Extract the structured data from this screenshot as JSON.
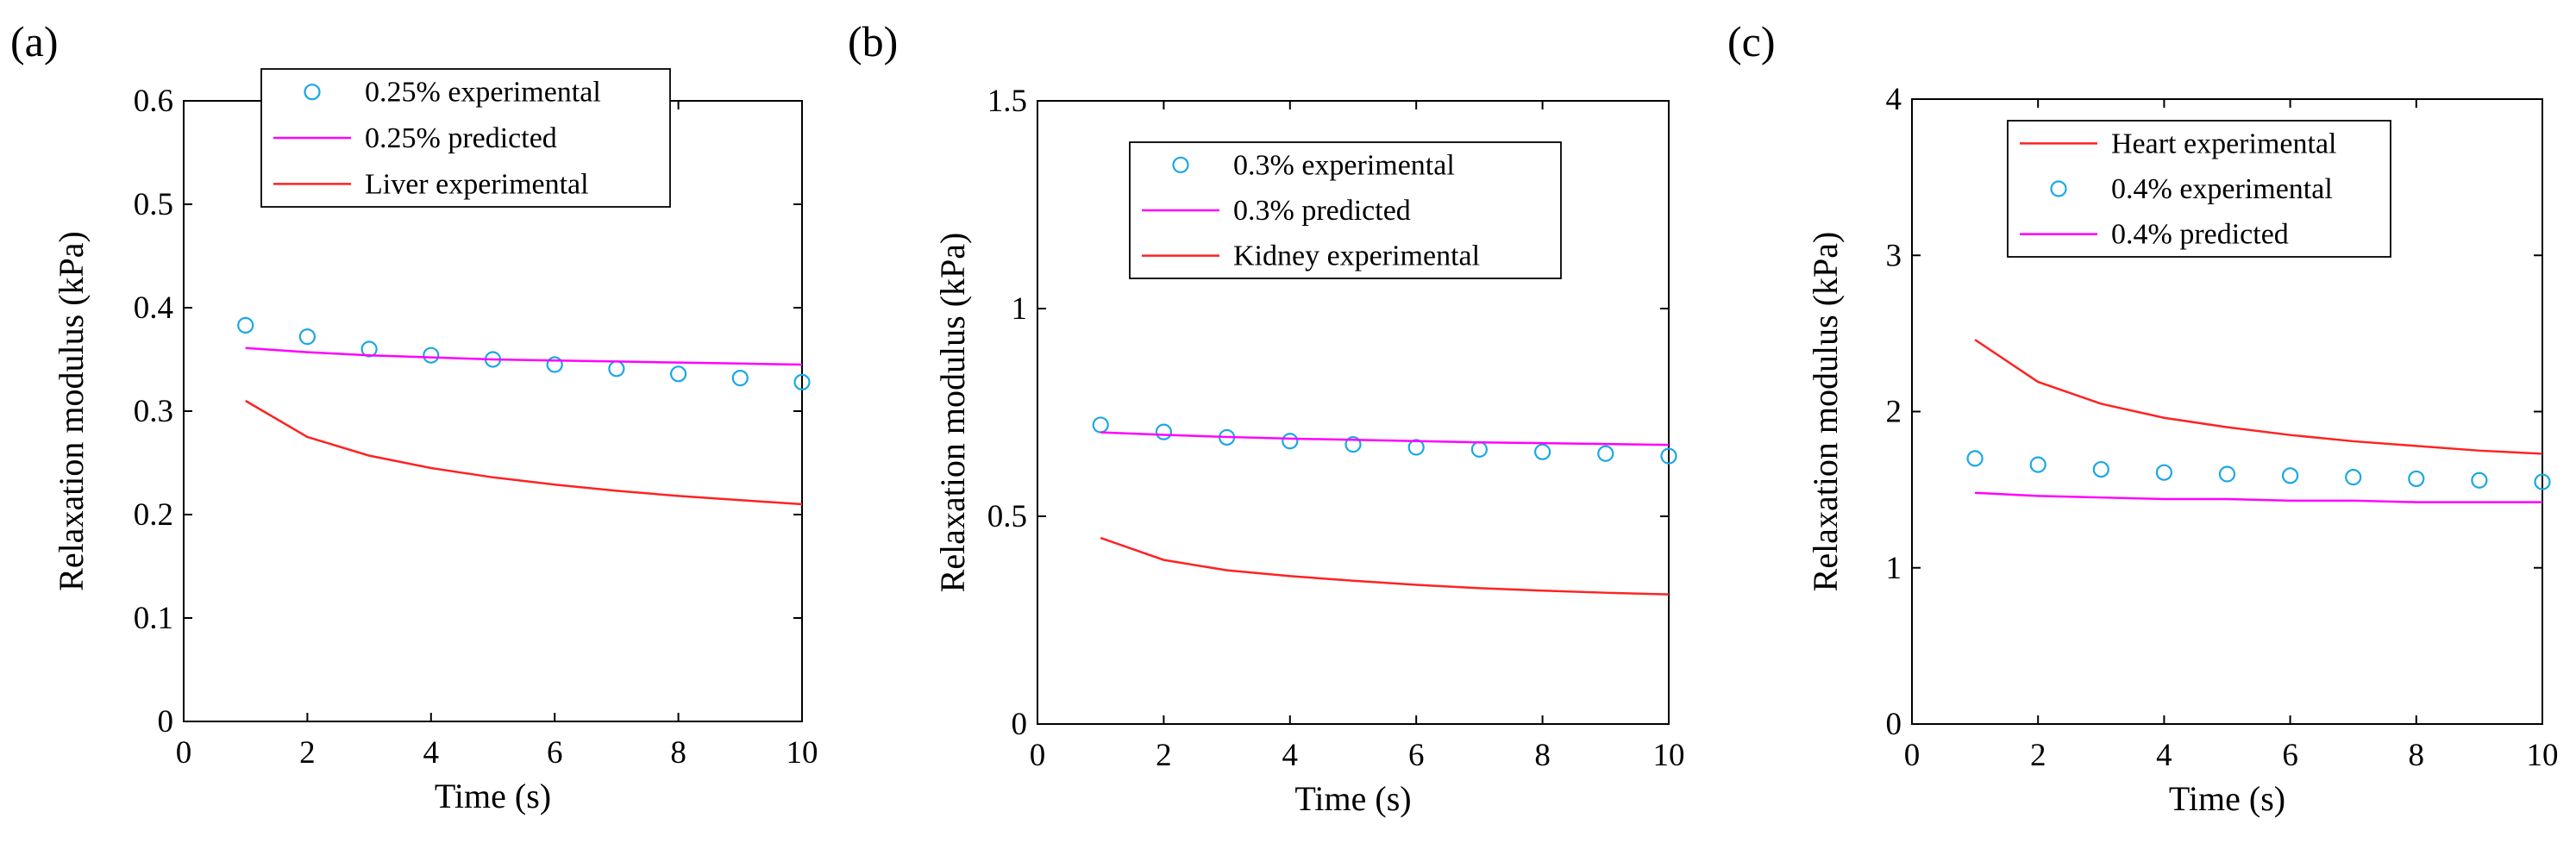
{
  "colors": {
    "experimental_marker": "#1aa7e6",
    "predicted": "#ff00ff",
    "tissue": "#ff2222",
    "axis": "#000000"
  },
  "chart_data": [
    {
      "type": "line",
      "panel": "(a)",
      "xlabel": "Time (s)",
      "ylabel": "Relaxation modulus (kPa)",
      "xlim": [
        0,
        10
      ],
      "ylim": [
        0,
        0.6
      ],
      "xticks": [
        0,
        2,
        4,
        6,
        8,
        10
      ],
      "yticks": [
        0,
        0.1,
        0.2,
        0.3,
        0.4,
        0.5,
        0.6
      ],
      "xtick_labels": [
        "0",
        "2",
        "4",
        "6",
        "8",
        "10"
      ],
      "ytick_labels": [
        "0",
        "0.1",
        "0.2",
        "0.3",
        "0.4",
        "0.5",
        "0.6"
      ],
      "legend_position": "top-center",
      "series": [
        {
          "name": "0.25% experimental",
          "style": "markers",
          "color": "#1aa7e6",
          "x": [
            1,
            2,
            3,
            4,
            5,
            6,
            7,
            8,
            9,
            10
          ],
          "values": [
            0.383,
            0.372,
            0.36,
            0.354,
            0.35,
            0.345,
            0.341,
            0.336,
            0.332,
            0.328
          ]
        },
        {
          "name": "0.25% predicted",
          "style": "line",
          "color": "#ff00ff",
          "x": [
            1,
            2,
            3,
            4,
            5,
            6,
            7,
            8,
            9,
            10
          ],
          "values": [
            0.361,
            0.357,
            0.354,
            0.352,
            0.35,
            0.349,
            0.348,
            0.347,
            0.346,
            0.345
          ]
        },
        {
          "name": "Liver experimental",
          "style": "line",
          "color": "#ff2222",
          "x": [
            1,
            2,
            3,
            4,
            5,
            6,
            7,
            8,
            9,
            10
          ],
          "values": [
            0.31,
            0.275,
            0.257,
            0.245,
            0.236,
            0.229,
            0.223,
            0.218,
            0.214,
            0.21
          ]
        }
      ],
      "legend_order": [
        0,
        1,
        2
      ]
    },
    {
      "type": "line",
      "panel": "(b)",
      "xlabel": "Time (s)",
      "ylabel": "Relaxation modulus (kPa)",
      "xlim": [
        0,
        10
      ],
      "ylim": [
        0,
        1.5
      ],
      "xticks": [
        0,
        2,
        4,
        6,
        8,
        10
      ],
      "yticks": [
        0,
        0.5,
        1,
        1.5
      ],
      "xtick_labels": [
        "0",
        "2",
        "4",
        "6",
        "8",
        "10"
      ],
      "ytick_labels": [
        "0",
        "0.5",
        "1",
        "1.5"
      ],
      "legend_position": "top-center",
      "series": [
        {
          "name": "0.3% experimental",
          "style": "markers",
          "color": "#1aa7e6",
          "x": [
            1,
            2,
            3,
            4,
            5,
            6,
            7,
            8,
            9,
            10
          ],
          "values": [
            0.72,
            0.703,
            0.69,
            0.681,
            0.673,
            0.666,
            0.661,
            0.655,
            0.651,
            0.645
          ]
        },
        {
          "name": "0.3% predicted",
          "style": "line",
          "color": "#ff00ff",
          "x": [
            1,
            2,
            3,
            4,
            5,
            6,
            7,
            8,
            9,
            10
          ],
          "values": [
            0.702,
            0.696,
            0.691,
            0.687,
            0.684,
            0.681,
            0.678,
            0.676,
            0.674,
            0.672
          ]
        },
        {
          "name": "Kidney experimental",
          "style": "line",
          "color": "#ff2222",
          "x": [
            1,
            2,
            3,
            4,
            5,
            6,
            7,
            8,
            9,
            10
          ],
          "values": [
            0.448,
            0.395,
            0.37,
            0.356,
            0.345,
            0.335,
            0.327,
            0.321,
            0.316,
            0.312
          ]
        }
      ],
      "legend_order": [
        0,
        1,
        2
      ]
    },
    {
      "type": "line",
      "panel": "(c)",
      "xlabel": "Time (s)",
      "ylabel": "Relaxation modulus (kPa)",
      "xlim": [
        0,
        10
      ],
      "ylim": [
        0,
        4
      ],
      "xticks": [
        0,
        2,
        4,
        6,
        8,
        10
      ],
      "yticks": [
        0,
        1,
        2,
        3,
        4
      ],
      "xtick_labels": [
        "0",
        "2",
        "4",
        "6",
        "8",
        "10"
      ],
      "ytick_labels": [
        "0",
        "1",
        "2",
        "3",
        "4"
      ],
      "legend_position": "top-center",
      "series": [
        {
          "name": "0.4% experimental",
          "style": "markers",
          "color": "#1aa7e6",
          "x": [
            1,
            2,
            3,
            4,
            5,
            6,
            7,
            8,
            9,
            10
          ],
          "values": [
            1.7,
            1.66,
            1.63,
            1.61,
            1.6,
            1.59,
            1.58,
            1.57,
            1.56,
            1.55
          ]
        },
        {
          "name": "0.4% predicted",
          "style": "line",
          "color": "#ff00ff",
          "x": [
            1,
            2,
            3,
            4,
            5,
            6,
            7,
            8,
            9,
            10
          ],
          "values": [
            1.48,
            1.46,
            1.45,
            1.44,
            1.44,
            1.43,
            1.43,
            1.42,
            1.42,
            1.42
          ]
        },
        {
          "name": "Heart experimental",
          "style": "line",
          "color": "#ff2222",
          "x": [
            1,
            2,
            3,
            4,
            5,
            6,
            7,
            8,
            9,
            10
          ],
          "values": [
            2.46,
            2.19,
            2.05,
            1.96,
            1.9,
            1.85,
            1.81,
            1.78,
            1.75,
            1.73
          ]
        }
      ],
      "legend_order": [
        2,
        0,
        1
      ]
    }
  ]
}
